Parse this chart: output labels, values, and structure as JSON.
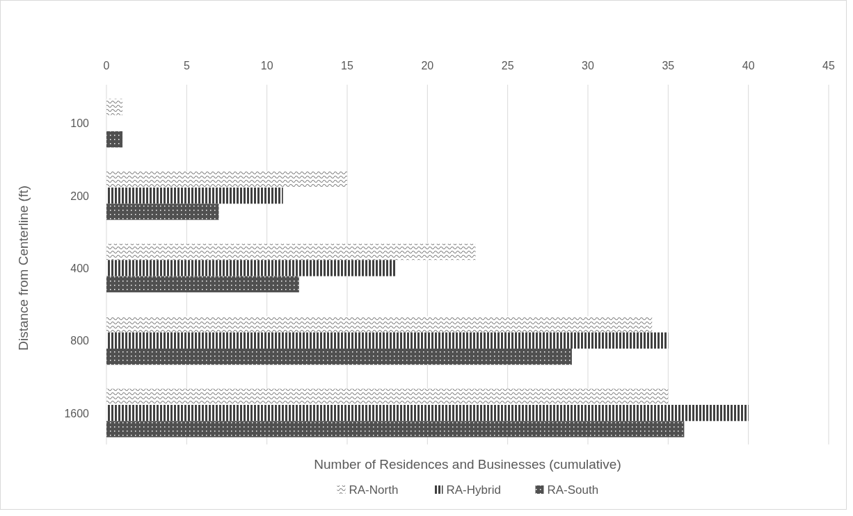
{
  "chart_data": {
    "type": "bar",
    "orientation": "horizontal",
    "xlabel": "Number of Residences and Businesses (cumulative)",
    "ylabel": "Distance from Centerline (ft)",
    "categories": [
      "100",
      "200",
      "400",
      "800",
      "1600"
    ],
    "series": [
      {
        "name": "RA-North",
        "color": "#7f7f7f",
        "values": [
          1,
          15,
          23,
          34,
          35
        ]
      },
      {
        "name": "RA-Hybrid",
        "color": "#404040",
        "values": [
          0,
          11,
          18,
          35,
          40
        ]
      },
      {
        "name": "RA-South",
        "color": "#505050",
        "values": [
          1,
          7,
          12,
          29,
          36
        ]
      }
    ],
    "xlim": [
      0,
      45
    ],
    "xticks": [
      0,
      5,
      10,
      15,
      20,
      25,
      30,
      35,
      40,
      45
    ],
    "grid": "x",
    "legend": "bottom"
  }
}
